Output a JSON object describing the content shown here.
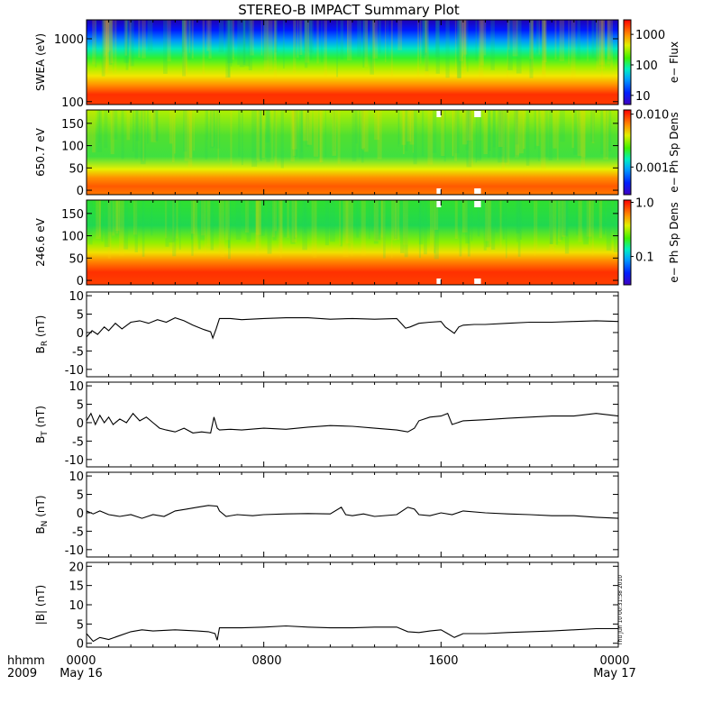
{
  "chart_data": {
    "type": "heatmap",
    "title": "STEREO-B IMPACT Summary Plot",
    "x_axis": {
      "ticks": [
        "0000",
        "0800",
        "1600",
        "0000"
      ],
      "tick_hours": [
        0,
        8,
        16,
        24
      ],
      "range_hours": [
        0,
        24
      ],
      "row1_label": "hhmm",
      "row2_label": "2009",
      "dates": [
        "May 16",
        "May 17"
      ]
    },
    "panels": [
      {
        "id": "swea",
        "kind": "spectrogram",
        "ylabel": "SWEA (eV)",
        "yscale": "log",
        "yticks": [
          "1000",
          "100"
        ],
        "ytick_values": [
          1000,
          100
        ],
        "yrange": [
          90,
          2000
        ],
        "colorbar": {
          "label": "e− Flux",
          "ticks": [
            "1000",
            "100",
            "10"
          ],
          "tick_values": [
            1000,
            100,
            10
          ],
          "range": [
            5,
            3000
          ],
          "scale": "log"
        }
      },
      {
        "id": "pad650",
        "kind": "spectrogram",
        "ylabel": "650.7 eV",
        "yscale": "linear",
        "yticks": [
          "150",
          "100",
          "50",
          "0"
        ],
        "ytick_values": [
          150,
          100,
          50,
          0
        ],
        "yrange": [
          -10,
          180
        ],
        "colorbar": {
          "label": "e− Ph Sp Dens",
          "ticks": [
            "0.010",
            "0.001"
          ],
          "tick_values": [
            0.01,
            0.001
          ],
          "range": [
            0.0003,
            0.012
          ],
          "scale": "log"
        }
      },
      {
        "id": "pad246",
        "kind": "spectrogram",
        "ylabel": "246.6 eV",
        "yscale": "linear",
        "yticks": [
          "150",
          "100",
          "50",
          "0"
        ],
        "ytick_values": [
          150,
          100,
          50,
          0
        ],
        "yrange": [
          -10,
          180
        ],
        "colorbar": {
          "label": "e− Ph Sp Dens",
          "ticks": [
            "1.0",
            "0.1"
          ],
          "tick_values": [
            1.0,
            0.1
          ],
          "range": [
            0.03,
            1.1
          ],
          "scale": "log"
        }
      },
      {
        "id": "br",
        "kind": "line",
        "ylabel": "B_R (nT)",
        "ylabel_main": "B",
        "ylabel_sub": "R",
        "ylabel_unit": "(nT)",
        "yrange": [
          -12,
          11
        ],
        "yticks": [
          "10",
          "5",
          "0",
          "-5",
          "-10"
        ],
        "ytick_values": [
          10,
          5,
          0,
          -5,
          -10
        ],
        "x": [
          0,
          0.25,
          0.5,
          0.8,
          1.0,
          1.3,
          1.6,
          2.0,
          2.4,
          2.8,
          3.2,
          3.6,
          4.0,
          4.4,
          4.8,
          5.0,
          5.3,
          5.6,
          5.7,
          5.85,
          6.0,
          6.5,
          7.0,
          8.0,
          9.0,
          10.0,
          11.0,
          12.0,
          13.0,
          14.0,
          14.2,
          14.4,
          14.6,
          15.0,
          15.5,
          16.0,
          16.2,
          16.6,
          16.8,
          17.0,
          17.5,
          18.0,
          19.0,
          20.0,
          21.0,
          22.0,
          23.0,
          24.0
        ],
        "y": [
          -1.2,
          0.5,
          -0.5,
          1.5,
          0.5,
          2.5,
          1.0,
          2.8,
          3.2,
          2.5,
          3.5,
          2.8,
          4.0,
          3.2,
          2.0,
          1.5,
          0.8,
          0.2,
          -1.5,
          1.0,
          3.8,
          3.8,
          3.5,
          3.8,
          4.0,
          4.0,
          3.6,
          3.8,
          3.6,
          3.8,
          2.5,
          1.2,
          1.5,
          2.5,
          2.8,
          3.0,
          1.5,
          -0.2,
          1.5,
          2.0,
          2.2,
          2.2,
          2.5,
          2.8,
          2.8,
          3.0,
          3.2,
          3.0
        ]
      },
      {
        "id": "bt",
        "kind": "line",
        "ylabel": "B_T (nT)",
        "ylabel_main": "B",
        "ylabel_sub": "T",
        "ylabel_unit": "(nT)",
        "yrange": [
          -12,
          11
        ],
        "yticks": [
          "10",
          "5",
          "0",
          "-5",
          "-10"
        ],
        "ytick_values": [
          10,
          5,
          0,
          -5,
          -10
        ],
        "x": [
          0,
          0.2,
          0.4,
          0.6,
          0.8,
          1.0,
          1.2,
          1.5,
          1.8,
          2.1,
          2.4,
          2.7,
          3.0,
          3.3,
          3.6,
          4.0,
          4.4,
          4.8,
          5.2,
          5.6,
          5.75,
          5.9,
          6.0,
          6.5,
          7.0,
          8.0,
          9.0,
          10.0,
          11.0,
          12.0,
          13.0,
          14.0,
          14.5,
          14.8,
          15.0,
          15.5,
          16.0,
          16.3,
          16.5,
          17.0,
          18.0,
          19.0,
          20.0,
          21.0,
          22.0,
          23.0,
          24.0
        ],
        "y": [
          0.5,
          2.5,
          -0.5,
          2.0,
          0.0,
          1.5,
          -0.5,
          1.0,
          0.0,
          2.5,
          0.5,
          1.5,
          0.0,
          -1.5,
          -2.0,
          -2.5,
          -1.5,
          -2.8,
          -2.5,
          -2.8,
          1.5,
          -1.5,
          -2.0,
          -1.8,
          -2.0,
          -1.5,
          -1.8,
          -1.2,
          -0.8,
          -1.0,
          -1.5,
          -2.0,
          -2.5,
          -1.5,
          0.5,
          1.5,
          1.8,
          2.5,
          -0.5,
          0.5,
          0.8,
          1.2,
          1.5,
          1.8,
          1.8,
          2.5,
          1.8
        ]
      },
      {
        "id": "bn",
        "kind": "line",
        "ylabel": "B_N (nT)",
        "ylabel_main": "B",
        "ylabel_sub": "N",
        "ylabel_unit": "(nT)",
        "yrange": [
          -12,
          11
        ],
        "yticks": [
          "10",
          "5",
          "0",
          "-5",
          "-10"
        ],
        "ytick_values": [
          10,
          5,
          0,
          -5,
          -10
        ],
        "x": [
          0,
          0.3,
          0.6,
          1.0,
          1.5,
          2.0,
          2.5,
          3.0,
          3.5,
          4.0,
          4.5,
          5.0,
          5.5,
          5.9,
          6.0,
          6.3,
          6.8,
          7.5,
          8.0,
          9.0,
          10.0,
          11.0,
          11.5,
          11.7,
          12.0,
          12.5,
          13.0,
          14.0,
          14.5,
          14.8,
          15.0,
          15.5,
          16.0,
          16.5,
          17.0,
          18.0,
          19.0,
          20.0,
          21.0,
          22.0,
          23.0,
          24.0
        ],
        "y": [
          0.5,
          -0.3,
          0.5,
          -0.5,
          -1.0,
          -0.5,
          -1.5,
          -0.5,
          -1.0,
          0.5,
          1.0,
          1.5,
          2.0,
          1.8,
          0.5,
          -1.0,
          -0.5,
          -0.8,
          -0.5,
          -0.3,
          -0.2,
          -0.3,
          1.5,
          -0.5,
          -0.8,
          -0.3,
          -1.0,
          -0.5,
          1.5,
          1.0,
          -0.5,
          -0.8,
          0.0,
          -0.5,
          0.5,
          0.0,
          -0.3,
          -0.5,
          -0.8,
          -0.8,
          -1.2,
          -1.5
        ]
      },
      {
        "id": "bmag",
        "kind": "line",
        "ylabel": "|B| (nT)",
        "yrange": [
          -1,
          21
        ],
        "yticks": [
          "20",
          "15",
          "10",
          "5",
          "0"
        ],
        "ytick_values": [
          20,
          15,
          10,
          5,
          0
        ],
        "x": [
          0,
          0.3,
          0.6,
          1.0,
          1.5,
          2.0,
          2.5,
          3.0,
          4.0,
          5.0,
          5.5,
          5.8,
          5.9,
          6.0,
          7.0,
          8.0,
          9.0,
          10.0,
          11.0,
          12.0,
          13.0,
          14.0,
          14.5,
          15.0,
          15.5,
          16.0,
          16.3,
          16.6,
          17.0,
          18.0,
          19.0,
          20.0,
          21.0,
          22.0,
          23.0,
          24.0
        ],
        "y": [
          2.5,
          0.5,
          1.5,
          1.0,
          2.0,
          3.0,
          3.5,
          3.2,
          3.5,
          3.2,
          3.0,
          2.5,
          0.8,
          4.0,
          4.0,
          4.2,
          4.5,
          4.2,
          4.0,
          4.0,
          4.2,
          4.2,
          3.0,
          2.8,
          3.2,
          3.5,
          2.5,
          1.5,
          2.5,
          2.5,
          2.8,
          3.0,
          3.2,
          3.5,
          3.8,
          3.8
        ]
      }
    ],
    "timestamp": "Thu Jun 10 00:31:38 2010"
  }
}
